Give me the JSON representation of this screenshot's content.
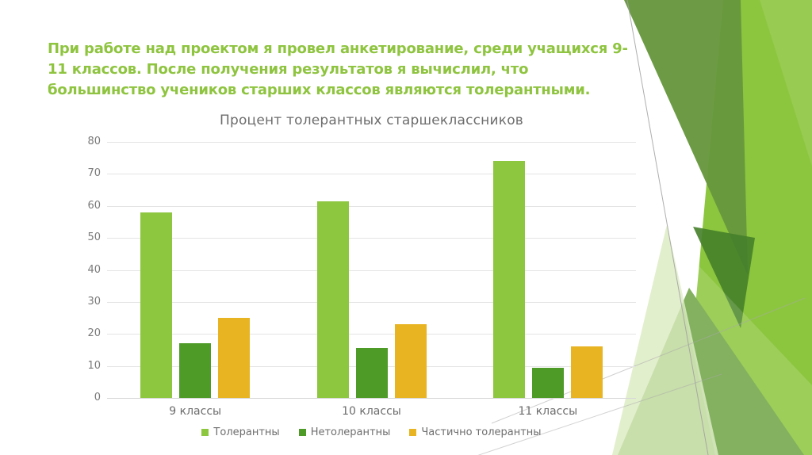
{
  "slide": {
    "title_lines": [
      "При работе над проектом я провел анкетирование, среди учащихся 9-",
      "11 классов. После получения результатов я вычислил, что",
      "большинство учеников старших классов являются толерантными."
    ],
    "title_color": "#8ec43f"
  },
  "chart_data": {
    "type": "bar",
    "title": "Процент толерантных старшеклассников",
    "categories": [
      "9 классы",
      "10 классы",
      "11 классы"
    ],
    "series": [
      {
        "name": "Толерантны",
        "color": "#8dc63f",
        "values": [
          58,
          61.5,
          74
        ]
      },
      {
        "name": "Нетолерантны",
        "color": "#4f9b28",
        "values": [
          17,
          15.5,
          9.5
        ]
      },
      {
        "name": "Частично толерантны",
        "color": "#e8b422",
        "values": [
          25,
          23,
          16
        ]
      }
    ],
    "ylim": [
      0,
      80
    ],
    "yticks": [
      0,
      10,
      20,
      30,
      40,
      50,
      60,
      70,
      80
    ],
    "grid": true,
    "legend_position": "bottom",
    "xlabel": "",
    "ylabel": ""
  },
  "theme": {
    "bright": "#8cc63e",
    "deep": "#67973d",
    "medium": "#6fa545",
    "dark": "#45802a",
    "pale": "#dcecc2"
  }
}
